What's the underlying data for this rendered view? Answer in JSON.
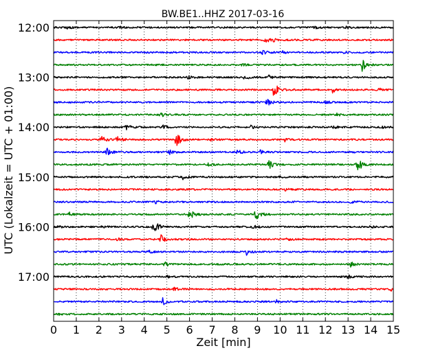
{
  "chart_data": {
    "type": "line",
    "title": "BW.BE1..HHZ 2017-03-16",
    "xlabel": "Zeit  [min]",
    "ylabel": "UTC (Lokalzeit = UTC + 01:00)",
    "xlim": [
      0,
      15
    ],
    "x_ticks": [
      "0",
      "1",
      "2",
      "3",
      "4",
      "5",
      "6",
      "7",
      "8",
      "9",
      "10",
      "11",
      "12",
      "13",
      "14",
      "15"
    ],
    "y_tick_labels": [
      "12:00",
      "13:00",
      "14:00",
      "15:00",
      "16:00",
      "17:00"
    ],
    "grid": "vertical dotted",
    "trace_color_cycle": [
      "#000000",
      "#ff0000",
      "#0000ff",
      "#008000"
    ],
    "traces": [
      {
        "start": "12:00",
        "events": [
          [
            0.6,
            0.12
          ],
          [
            2.9,
            0.1
          ],
          [
            11.5,
            0.12
          ],
          [
            12.9,
            0.12
          ]
        ]
      },
      {
        "start": "12:15",
        "events": [
          [
            9.3,
            0.35
          ],
          [
            9.7,
            0.12
          ]
        ]
      },
      {
        "start": "12:30",
        "events": [
          [
            9.2,
            0.25
          ],
          [
            10.1,
            0.15
          ],
          [
            12.8,
            0.1
          ]
        ]
      },
      {
        "start": "12:45",
        "events": [
          [
            8.3,
            0.15
          ],
          [
            13.6,
            0.75
          ]
        ]
      },
      {
        "start": "13:00",
        "events": [
          [
            5.9,
            0.15
          ],
          [
            8.4,
            0.3
          ],
          [
            9.5,
            0.2
          ]
        ]
      },
      {
        "start": "13:15",
        "events": [
          [
            9.7,
            1.0
          ],
          [
            12.3,
            0.3
          ],
          [
            14.3,
            0.25
          ]
        ]
      },
      {
        "start": "13:30",
        "events": [
          [
            9.4,
            0.45
          ],
          [
            12.0,
            0.15
          ]
        ]
      },
      {
        "start": "13:45",
        "events": [
          [
            4.7,
            0.25
          ],
          [
            12.5,
            0.12
          ]
        ]
      },
      {
        "start": "14:00",
        "events": [
          [
            3.2,
            0.3
          ],
          [
            4.8,
            0.2
          ],
          [
            8.7,
            0.15
          ],
          [
            12.3,
            0.15
          ],
          [
            14.5,
            0.15
          ]
        ]
      },
      {
        "start": "14:15",
        "events": [
          [
            2.1,
            0.35
          ],
          [
            2.8,
            0.35
          ],
          [
            5.4,
            1.0
          ],
          [
            6.9,
            0.2
          ],
          [
            10.2,
            0.2
          ]
        ]
      },
      {
        "start": "14:30",
        "events": [
          [
            2.3,
            0.55
          ],
          [
            5.1,
            0.3
          ],
          [
            8.1,
            0.25
          ],
          [
            9.1,
            0.25
          ],
          [
            13.0,
            0.15
          ]
        ]
      },
      {
        "start": "14:45",
        "events": [
          [
            9.5,
            0.5
          ],
          [
            13.4,
            0.95
          ],
          [
            6.8,
            0.15
          ]
        ]
      },
      {
        "start": "15:00",
        "events": [
          [
            5.7,
            0.25
          ],
          [
            9.9,
            0.12
          ]
        ]
      },
      {
        "start": "15:15",
        "events": [
          [
            10.2,
            0.12
          ]
        ]
      },
      {
        "start": "15:30",
        "events": [
          [
            4.5,
            0.15
          ],
          [
            13.1,
            0.12
          ]
        ]
      },
      {
        "start": "15:45",
        "events": [
          [
            0.7,
            0.2
          ],
          [
            6.0,
            0.55
          ],
          [
            8.9,
            1.0
          ]
        ]
      },
      {
        "start": "16:00",
        "events": [
          [
            0.2,
            0.15
          ],
          [
            2.1,
            0.15
          ],
          [
            4.4,
            0.95
          ],
          [
            8.8,
            0.2
          ],
          [
            13.9,
            0.15
          ]
        ]
      },
      {
        "start": "16:15",
        "events": [
          [
            4.7,
            0.55
          ],
          [
            2.8,
            0.15
          ],
          [
            10.3,
            0.15
          ]
        ]
      },
      {
        "start": "16:30",
        "events": [
          [
            4.2,
            0.15
          ],
          [
            8.5,
            0.35
          ]
        ]
      },
      {
        "start": "16:45",
        "events": [
          [
            4.9,
            0.3
          ],
          [
            13.1,
            0.3
          ]
        ]
      },
      {
        "start": "17:00",
        "events": [
          [
            13.0,
            0.3
          ],
          [
            5.0,
            0.12
          ]
        ]
      },
      {
        "start": "17:15",
        "events": [
          [
            5.3,
            0.2
          ],
          [
            14.9,
            0.15
          ]
        ]
      },
      {
        "start": "17:30",
        "events": [
          [
            4.8,
            0.4
          ],
          [
            9.8,
            0.2
          ]
        ]
      },
      {
        "start": "17:45",
        "events": [
          [
            0.2,
            0.08
          ]
        ]
      }
    ]
  }
}
